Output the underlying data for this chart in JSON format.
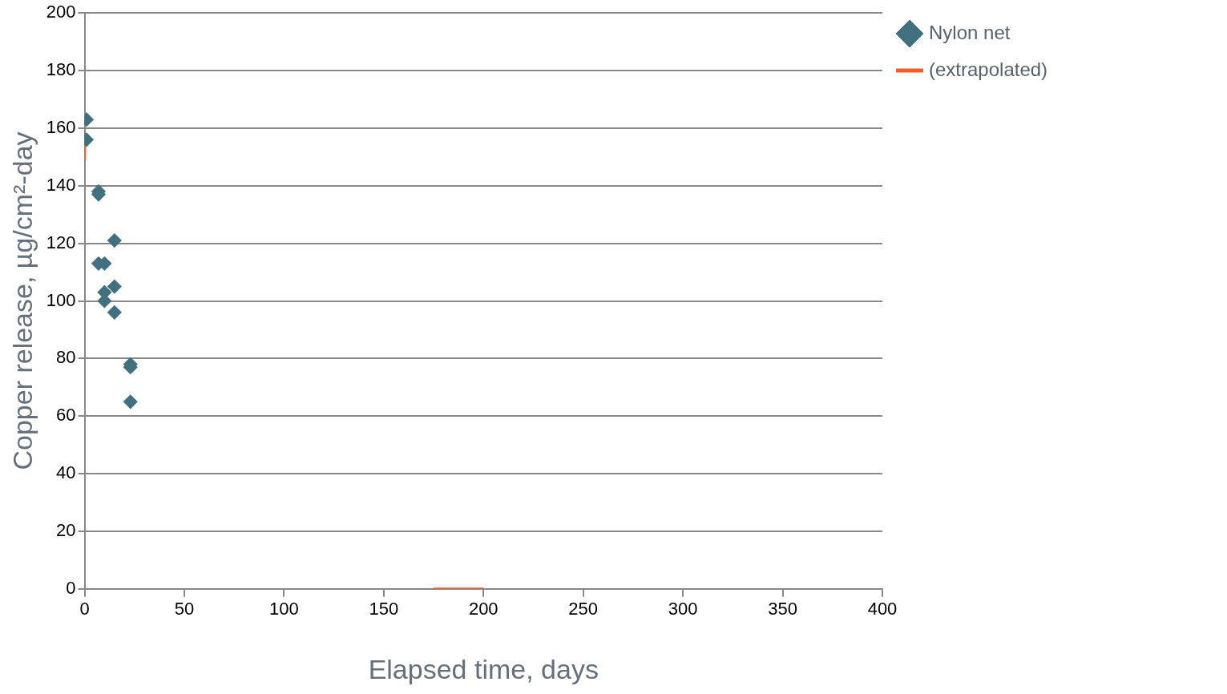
{
  "chart_data": {
    "type": "scatter",
    "xlabel": "Elapsed time, days",
    "ylabel": "Copper release, µg/cm²-day",
    "xlim": [
      0,
      400
    ],
    "xticks": [
      0,
      50,
      100,
      150,
      200,
      250,
      300,
      350,
      400
    ],
    "ylim": [
      0,
      200
    ],
    "yticks": [
      0,
      20,
      40,
      60,
      80,
      100,
      120,
      140,
      160,
      180,
      200
    ],
    "grid": "y",
    "legend": "top right",
    "marker": "diamond",
    "series": [
      {
        "name": "Nylon net",
        "type": "scatter",
        "color": "#41707f",
        "x": [
          1,
          1,
          7,
          7,
          15,
          7,
          10,
          15,
          10,
          10,
          15,
          23,
          23,
          23
        ],
        "values": [
          163,
          156,
          138,
          137,
          121,
          113,
          113,
          105,
          103,
          100,
          96,
          78,
          77,
          65
        ]
      },
      {
        "name": "(extrapolated)",
        "type": "line",
        "color": "#ff5a1f",
        "marker": "none",
        "line_style": "solid",
        "x": [
          0,
          0,
          100,
          175,
          200
        ],
        "values": [
          155,
          149,
          null,
          0,
          0
        ]
      }
    ]
  }
}
